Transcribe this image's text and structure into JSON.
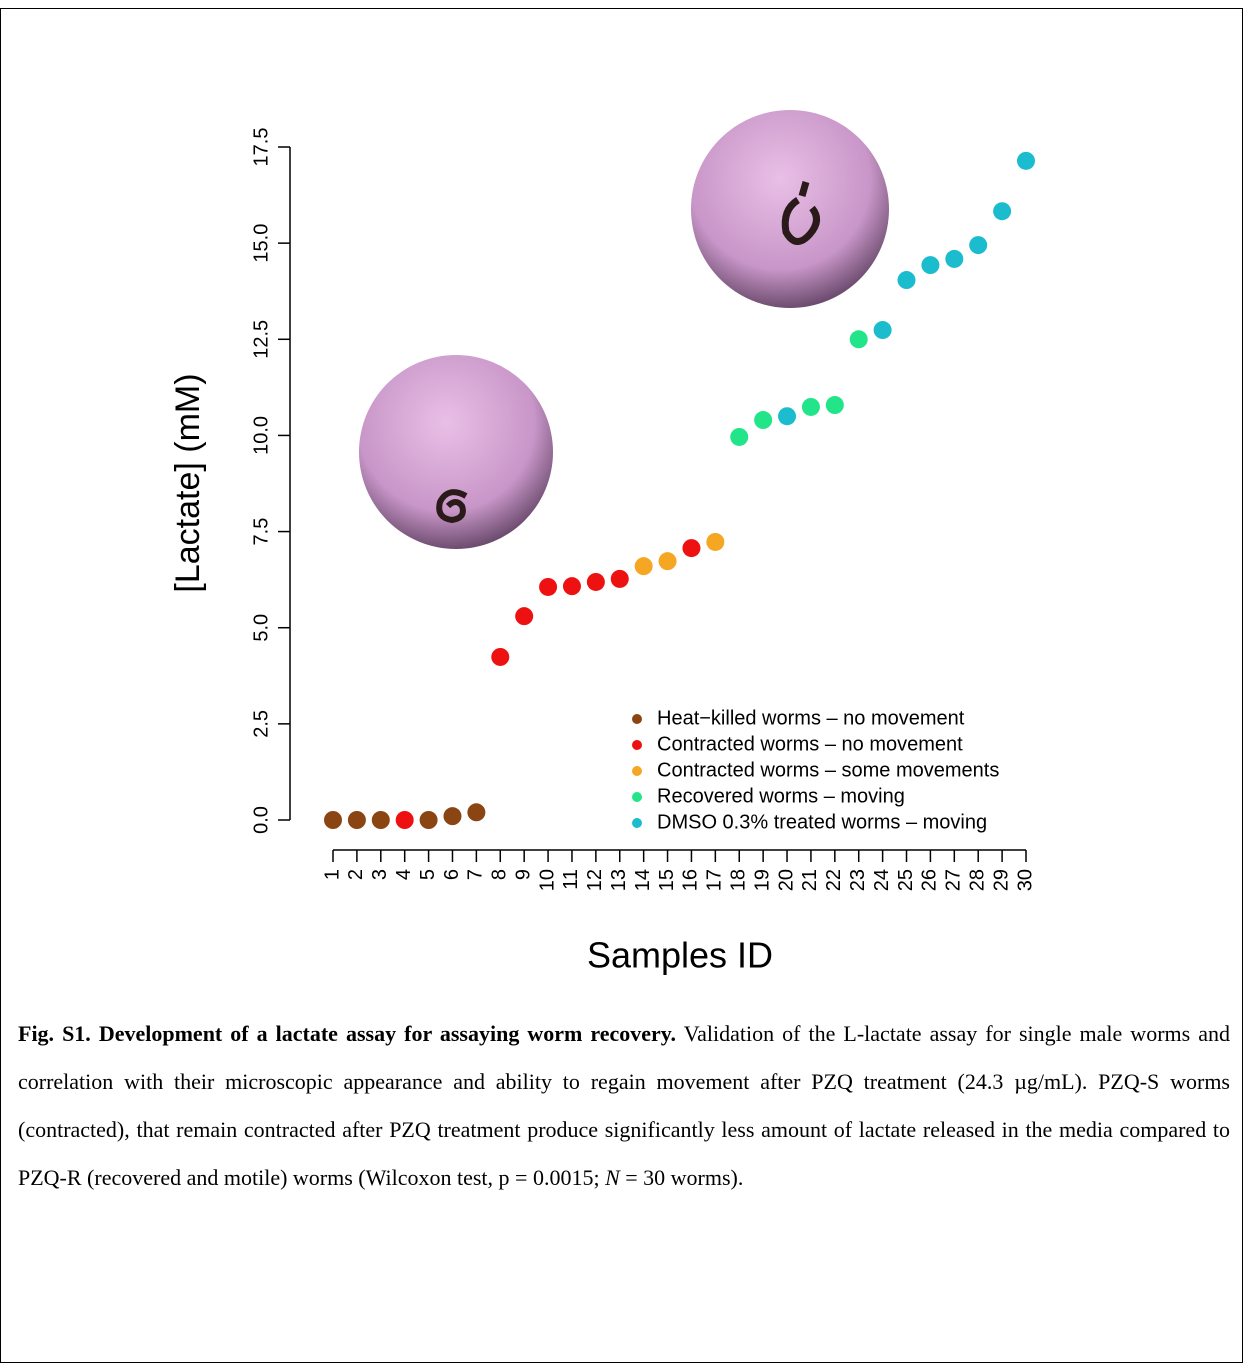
{
  "chart_data": {
    "type": "scatter",
    "y_label": "[Lactate] (mM)",
    "x_label": "Samples ID",
    "xlim": [
      1,
      30
    ],
    "xticks": [
      1,
      2,
      3,
      4,
      5,
      6,
      7,
      8,
      9,
      10,
      11,
      12,
      13,
      14,
      15,
      16,
      17,
      18,
      19,
      20,
      21,
      22,
      23,
      24,
      25,
      26,
      27,
      28,
      29,
      30
    ],
    "ylim": [
      0,
      17.5
    ],
    "yticks": [
      {
        "value": 0,
        "label": "0.0"
      },
      2.5,
      {
        "value": 5,
        "label": "5.0"
      },
      7.5,
      {
        "value": 10,
        "label": "10.0"
      },
      12.5,
      {
        "value": 15,
        "label": "15.0"
      },
      17.5
    ],
    "legend": "bottom-right",
    "series": [
      {
        "name": "Heat−killed worms – no movement",
        "color": "#8b4513",
        "x": [
          1,
          2,
          3,
          5,
          6,
          7
        ],
        "values": [
          0,
          0,
          0,
          0,
          0.1,
          0.2
        ]
      },
      {
        "name": "Contracted worms – no movement",
        "color": "#ee1111",
        "x": [
          4,
          8,
          9,
          10,
          11,
          12,
          13,
          16
        ],
        "values": [
          0,
          4.24,
          5.3,
          6.06,
          6.08,
          6.19,
          6.27,
          7.07
        ]
      },
      {
        "name": "Contracted worms – some movements",
        "color": "#f5a623",
        "x": [
          14,
          15,
          17
        ],
        "values": [
          6.6,
          6.73,
          7.23
        ]
      },
      {
        "name": "Recovered worms – moving",
        "color": "#22e58a",
        "x": [
          18,
          19,
          21,
          22,
          23
        ],
        "values": [
          9.96,
          10.4,
          10.74,
          10.79,
          12.5
        ]
      },
      {
        "name": "DMSO 0.3% treated worms – moving",
        "color": "#1cbccf",
        "x": [
          20,
          24,
          25,
          26,
          27,
          28,
          29,
          30
        ],
        "values": [
          10.5,
          12.74,
          14.04,
          14.43,
          14.59,
          14.95,
          15.83,
          17.14
        ]
      }
    ]
  },
  "caption": {
    "title": "Fig. S1. Development of a lactate assay for assaying worm recovery.",
    "body": [
      "Validation of the L-lactate assay for single male worms and correlation with their microscopic appearance and ability to regain movement after PZQ treatment (24.3 µg/mL). PZQ-S worms (contracted), that remain contracted after PZQ treatment produce significantly less amount of lactate released in the media compared to PZQ-R (recovered and motile) worms (Wilcoxon test, p = 0.0015; ",
      "N",
      " = 30 worms)."
    ]
  }
}
